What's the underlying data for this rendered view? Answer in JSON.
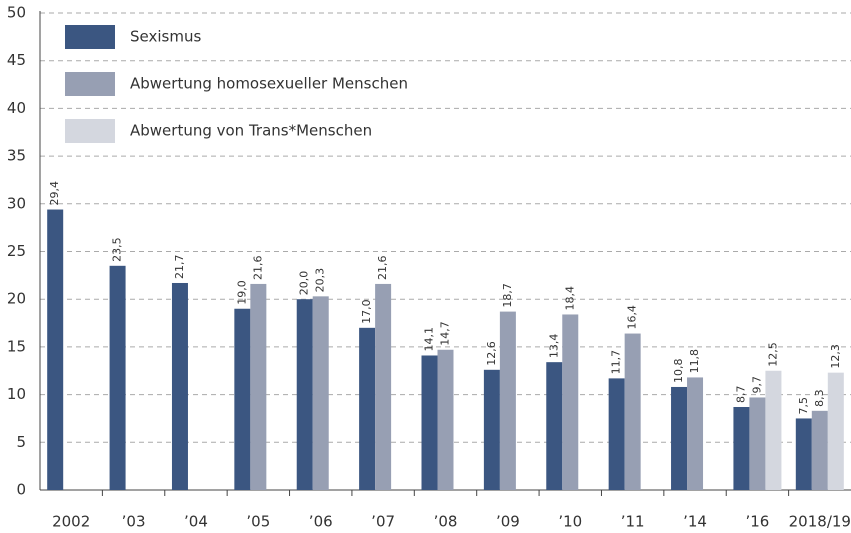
{
  "chart_data": {
    "type": "bar",
    "categories": [
      "2002",
      "’03",
      "’04",
      "’05",
      "’06",
      "’07",
      "’08",
      "’09",
      "’10",
      "’11",
      "’14",
      "’16",
      "2018/19"
    ],
    "series": [
      {
        "name": "Sexismus",
        "color": "#3b5681",
        "values": [
          29.4,
          23.5,
          21.7,
          19.0,
          20.0,
          17.0,
          14.1,
          12.6,
          13.4,
          11.7,
          10.8,
          8.7,
          7.5
        ],
        "value_labels": [
          "29,4",
          "23,5",
          "21,7",
          "19,0",
          "20,0",
          "17,0",
          "14,1",
          "12,6",
          "13,4",
          "11,7",
          "10,8",
          "8,7",
          "7,5"
        ]
      },
      {
        "name": "Abwertung homosexueller Menschen",
        "color": "#979fb3",
        "values": [
          null,
          null,
          null,
          21.6,
          20.3,
          21.6,
          14.7,
          18.7,
          18.4,
          16.4,
          11.8,
          9.7,
          8.3
        ],
        "value_labels": [
          null,
          null,
          null,
          "21,6",
          "20,3",
          "21,6",
          "14,7",
          "18,7",
          "18,4",
          "16,4",
          "11,8",
          "9,7",
          "8,3"
        ]
      },
      {
        "name": "Abwertung von Trans*Menschen",
        "color": "#d4d7df",
        "values": [
          null,
          null,
          null,
          null,
          null,
          null,
          null,
          null,
          null,
          null,
          null,
          12.5,
          12.3
        ],
        "value_labels": [
          null,
          null,
          null,
          null,
          null,
          null,
          null,
          null,
          null,
          null,
          null,
          "12,5",
          "12,3"
        ]
      }
    ],
    "ylim": [
      0,
      50
    ],
    "yticks": [
      0,
      5,
      10,
      15,
      20,
      25,
      30,
      35,
      40,
      45,
      50
    ],
    "grid": true,
    "legend": "upper left"
  }
}
